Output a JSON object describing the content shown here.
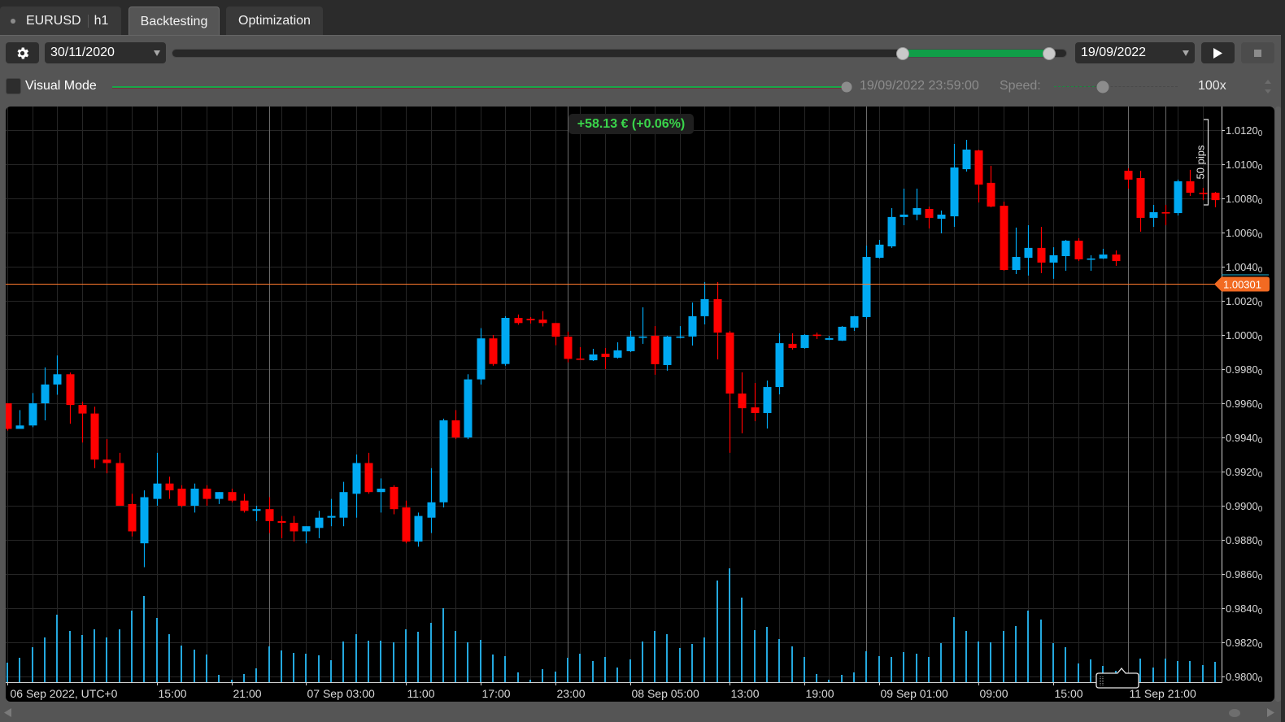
{
  "tabs": {
    "symbol_tab": {
      "symbol": "EURUSD",
      "timeframe": "h1"
    },
    "items": [
      {
        "label": "Backtesting",
        "active": true
      },
      {
        "label": "Optimization",
        "active": false
      }
    ]
  },
  "toolbar": {
    "settings_icon": "gear-icon",
    "start_date": "30/11/2020",
    "end_date": "19/09/2022",
    "range_slider": {
      "start_pct": 81.7,
      "end_pct": 98.1
    },
    "play_icon": "play-icon",
    "stop_icon": "stop-icon"
  },
  "visual_mode": {
    "label": "Visual Mode",
    "checked": false,
    "progress_pct": 100,
    "current_time": "19/09/2022 23:59:00",
    "speed_label": "Speed:",
    "speed_value": "100x",
    "speed_pct": 39.5
  },
  "colors": {
    "bull": "#00a9f2",
    "bear": "#ff0000",
    "volume": "#24a8de",
    "current_price": "#ff7a2e",
    "current_price_tag": "#f26a22",
    "ask_line": "#1fb3d6",
    "profit_text": "#3ad54b",
    "grid": "#262626",
    "separator": "#6b6b6b",
    "axis": "#cfcfcf",
    "axis_text": "#d8d8d8"
  },
  "chart_data": {
    "type": "candlestick",
    "symbol": "EURUSD",
    "timeframe": "h1",
    "profit_label": "+58.13 € (+0.06%)",
    "y_axis": {
      "max": 1.012,
      "min": 0.98,
      "step": 0.002
    },
    "price_ticks": [
      "1.0120",
      "1.0100",
      "1.0080",
      "1.0060",
      "1.0040",
      "1.0020",
      "1.0000",
      "0.9980",
      "0.9960",
      "0.9940",
      "0.9920",
      "0.9900",
      "0.9880",
      "0.9860",
      "0.9840",
      "0.9820",
      "0.9800"
    ],
    "pipette_digit": "0",
    "time_ticks": [
      {
        "index": 0,
        "label": "06 Sep 2022, UTC+0"
      },
      {
        "index": 12,
        "label": "15:00"
      },
      {
        "index": 18,
        "label": "21:00"
      },
      {
        "index": 24,
        "label": "07 Sep 03:00"
      },
      {
        "index": 32,
        "label": "11:00"
      },
      {
        "index": 38,
        "label": "17:00"
      },
      {
        "index": 44,
        "label": "23:00"
      },
      {
        "index": 50,
        "label": "08 Sep 05:00"
      },
      {
        "index": 58,
        "label": "13:00"
      },
      {
        "index": 64,
        "label": "19:00"
      },
      {
        "index": 70,
        "label": "09 Sep 01:00"
      },
      {
        "index": 78,
        "label": "09:00"
      },
      {
        "index": 84,
        "label": "15:00"
      },
      {
        "index": 90,
        "label": "11 Sep 21:00"
      }
    ],
    "day_separators": [
      21,
      45,
      69,
      90,
      93
    ],
    "current_price": 1.00301,
    "current_price_label": "1.00301",
    "measure": {
      "label": "50 pips",
      "pips": 50,
      "from": 1.01262,
      "to": 1.00762
    },
    "candles_format": "[open, high, low, close]",
    "candles": [
      [
        0.996,
        0.996,
        0.9944,
        0.9945
      ],
      [
        0.9945,
        0.9956,
        0.9945,
        0.9947
      ],
      [
        0.9947,
        0.9966,
        0.9946,
        0.996
      ],
      [
        0.996,
        0.9981,
        0.995,
        0.9971
      ],
      [
        0.9971,
        0.9988,
        0.9965,
        0.9977
      ],
      [
        0.9977,
        0.9978,
        0.9948,
        0.9959
      ],
      [
        0.9959,
        0.9961,
        0.9937,
        0.9954
      ],
      [
        0.9954,
        0.9958,
        0.9922,
        0.9927
      ],
      [
        0.9927,
        0.9939,
        0.9919,
        0.9925
      ],
      [
        0.9925,
        0.9931,
        0.99,
        0.99
      ],
      [
        0.9901,
        0.9907,
        0.9882,
        0.9885
      ],
      [
        0.9878,
        0.9909,
        0.9864,
        0.9905
      ],
      [
        0.9904,
        0.9931,
        0.99,
        0.9913
      ],
      [
        0.9913,
        0.9917,
        0.9904,
        0.9909
      ],
      [
        0.991,
        0.9912,
        0.9899,
        0.99
      ],
      [
        0.99,
        0.9913,
        0.9896,
        0.991
      ],
      [
        0.991,
        0.9912,
        0.99,
        0.9904
      ],
      [
        0.9904,
        0.9908,
        0.9901,
        0.9908
      ],
      [
        0.9908,
        0.991,
        0.9902,
        0.9903
      ],
      [
        0.9903,
        0.9907,
        0.9896,
        0.9897
      ],
      [
        0.9897,
        0.99,
        0.9891,
        0.9898
      ],
      [
        0.9898,
        0.9905,
        0.9884,
        0.9891
      ],
      [
        0.9891,
        0.9894,
        0.9881,
        0.989
      ],
      [
        0.989,
        0.9894,
        0.9879,
        0.9885
      ],
      [
        0.9885,
        0.9888,
        0.9878,
        0.9888
      ],
      [
        0.9887,
        0.9897,
        0.9881,
        0.9893
      ],
      [
        0.9893,
        0.9904,
        0.9888,
        0.9894
      ],
      [
        0.9893,
        0.9914,
        0.9888,
        0.9908
      ],
      [
        0.9907,
        0.993,
        0.9893,
        0.9925
      ],
      [
        0.9925,
        0.9931,
        0.9907,
        0.9908
      ],
      [
        0.9908,
        0.9916,
        0.9896,
        0.991
      ],
      [
        0.9911,
        0.9912,
        0.9895,
        0.9898
      ],
      [
        0.9899,
        0.9903,
        0.9878,
        0.9879
      ],
      [
        0.9879,
        0.9896,
        0.9876,
        0.9894
      ],
      [
        0.9893,
        0.9922,
        0.9884,
        0.9902
      ],
      [
        0.9902,
        0.9951,
        0.9899,
        0.995
      ],
      [
        0.995,
        0.9956,
        0.9939,
        0.994
      ],
      [
        0.994,
        0.9977,
        0.9939,
        0.9974
      ],
      [
        0.9974,
        1.0004,
        0.9971,
        0.9998
      ],
      [
        0.9998,
        1.0,
        0.9982,
        0.9983
      ],
      [
        0.9983,
        1.0011,
        0.9982,
        1.001
      ],
      [
        1.001,
        1.0012,
        1.0006,
        1.0007
      ],
      [
        1.00095,
        1.00105,
        1.00067,
        1.00086
      ],
      [
        1.0009,
        1.0014,
        1.0005,
        1.0007
      ],
      [
        1.0007,
        1.0007,
        0.9994,
        0.9999
      ],
      [
        0.9999,
        1.0002,
        0.9984,
        0.9986
      ],
      [
        0.99862,
        0.99929,
        0.99855,
        0.99857
      ],
      [
        0.99852,
        0.99919,
        0.99848,
        0.99886
      ],
      [
        0.9989,
        0.99924,
        0.998,
        0.99871
      ],
      [
        0.99867,
        0.99957,
        0.99862,
        0.9991
      ],
      [
        0.99905,
        1.00024,
        0.999,
        0.99991
      ],
      [
        0.99986,
        1.00162,
        0.99948,
        0.99991
      ],
      [
        0.99995,
        1.00052,
        0.99767,
        0.99829
      ],
      [
        0.99824,
        0.99995,
        0.99791,
        0.99991
      ],
      [
        0.99986,
        1.00052,
        0.9998,
        0.99991
      ],
      [
        0.99991,
        1.0019,
        0.99938,
        1.0011
      ],
      [
        1.0011,
        1.0031,
        1.00062,
        1.0021
      ],
      [
        1.0021,
        1.0031,
        0.99857,
        1.00014
      ],
      [
        1.00014,
        1.00024,
        0.9931,
        0.99657
      ],
      [
        0.99657,
        0.99781,
        0.99424,
        0.99571
      ],
      [
        0.99576,
        0.99719,
        0.99495,
        0.99543
      ],
      [
        0.99543,
        0.99733,
        0.99452,
        0.99695
      ],
      [
        0.99695,
        1.0001,
        0.99652,
        0.99952
      ],
      [
        0.99948,
        1.0001,
        0.99914,
        0.99924
      ],
      [
        0.99924,
        1.00005,
        0.99919,
        1.0
      ],
      [
        1.00002,
        1.00014,
        0.99976,
        0.99998
      ],
      [
        0.99972,
        0.99995,
        0.9997,
        0.99981
      ],
      [
        0.99967,
        1.00052,
        0.99965,
        1.00048
      ],
      [
        1.00043,
        1.00112,
        1.00024,
        1.0011
      ],
      [
        1.00105,
        1.00524,
        1.00095,
        1.00457
      ],
      [
        1.00452,
        1.00557,
        1.00448,
        1.00529
      ],
      [
        1.00519,
        1.00743,
        1.0051,
        1.00691
      ],
      [
        1.00691,
        1.00857,
        1.00643,
        1.00705
      ],
      [
        1.00705,
        1.00857,
        1.00672,
        1.00743
      ],
      [
        1.00738,
        1.00752,
        1.00624,
        1.00686
      ],
      [
        1.00681,
        1.00729,
        1.00595,
        1.00705
      ],
      [
        1.00695,
        1.01119,
        1.00633,
        1.00981
      ],
      [
        1.00971,
        1.01143,
        1.00957,
        1.01086
      ],
      [
        1.01081,
        1.01085,
        1.00776,
        1.00881
      ],
      [
        1.00891,
        1.00991,
        1.00748,
        1.00752
      ],
      [
        1.00757,
        1.00781,
        1.00376,
        1.00381
      ],
      [
        1.00381,
        1.00629,
        1.00357,
        1.00457
      ],
      [
        1.00452,
        1.00643,
        1.00348,
        1.0051
      ],
      [
        1.0051,
        1.00633,
        1.00362,
        1.00424
      ],
      [
        1.00424,
        1.00514,
        1.00329,
        1.00467
      ],
      [
        1.00462,
        1.00557,
        1.00376,
        1.00552
      ],
      [
        1.00552,
        1.00567,
        1.00433,
        1.00443
      ],
      [
        1.00443,
        1.00467,
        1.00376,
        1.00448
      ],
      [
        1.00448,
        1.00505,
        1.00445,
        1.00471
      ],
      [
        1.00471,
        1.00495,
        1.00405,
        1.00433
      ],
      [
        1.00962,
        1.00976,
        1.00857,
        1.0091
      ],
      [
        1.00919,
        1.00962,
        1.00605,
        1.00686
      ],
      [
        1.00686,
        1.00762,
        1.00633,
        1.00719
      ],
      [
        1.00719,
        1.00762,
        1.00643,
        1.00714
      ],
      [
        1.00714,
        1.0091,
        1.007,
        1.009
      ],
      [
        1.009,
        1.00967,
        1.00814,
        1.00833
      ],
      [
        1.00833,
        1.00862,
        1.0079,
        1.00829
      ],
      [
        1.00833,
        1.00838,
        1.00748,
        1.0079
      ]
    ],
    "volumes": [
      24,
      30,
      43,
      55,
      83,
      63,
      58,
      65,
      55,
      65,
      88,
      106,
      79,
      59,
      45,
      40,
      34,
      9,
      3,
      10,
      17,
      44,
      39,
      36,
      35,
      33,
      27,
      50,
      59,
      51,
      51,
      49,
      65,
      62,
      73,
      91,
      63,
      49,
      52,
      34,
      32,
      12,
      3,
      16,
      13,
      30,
      35,
      26,
      31,
      18,
      28,
      50,
      63,
      59,
      42,
      47,
      55,
      125,
      140,
      104,
      64,
      68,
      53,
      44,
      31,
      10,
      3,
      9,
      12,
      38,
      32,
      31,
      37,
      35,
      31,
      48,
      80,
      63,
      50,
      49,
      63,
      69,
      88,
      77,
      48,
      43,
      23,
      28,
      20,
      14,
      8,
      29,
      18,
      29,
      26,
      26,
      21,
      25
    ]
  }
}
